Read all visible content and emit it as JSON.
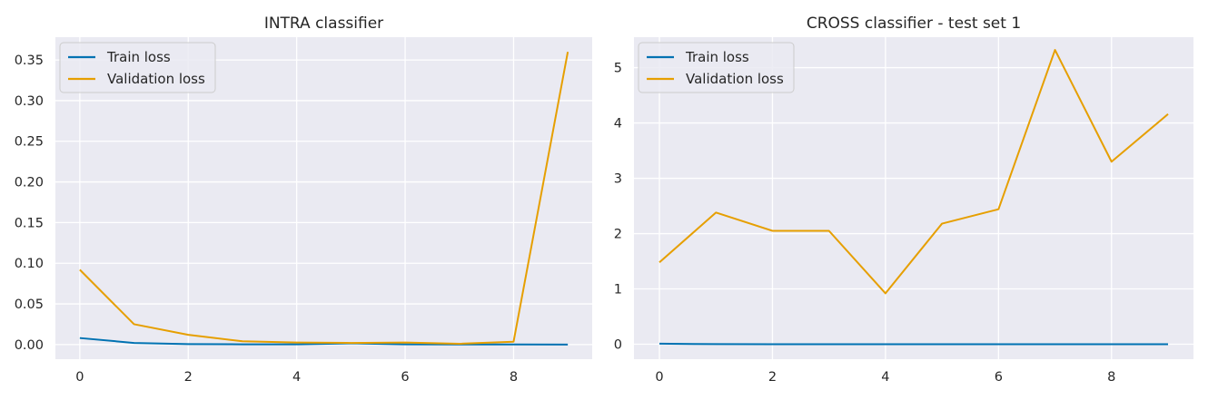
{
  "chart_data": [
    {
      "type": "line",
      "title": "INTRA classifier",
      "xlabel": "",
      "ylabel": "",
      "x": [
        0,
        1,
        2,
        3,
        4,
        5,
        6,
        7,
        8,
        9
      ],
      "xlim": [
        -0.45,
        9.45
      ],
      "ylim": [
        -0.018,
        0.378
      ],
      "xticks": [
        0,
        2,
        4,
        6,
        8
      ],
      "yticks": [
        0.0,
        0.05,
        0.1,
        0.15,
        0.2,
        0.25,
        0.3,
        0.35
      ],
      "ytick_labels": [
        "0.00",
        "0.05",
        "0.10",
        "0.15",
        "0.20",
        "0.25",
        "0.30",
        "0.35"
      ],
      "grid": true,
      "legend_position": "upper-left",
      "series": [
        {
          "name": "Train loss",
          "color": "#0072b2",
          "values": [
            0.008,
            0.002,
            0.0005,
            0.0003,
            0.0002,
            0.0015,
            0.0002,
            0.0001,
            0.0001,
            0.0
          ]
        },
        {
          "name": "Validation loss",
          "color": "#e69f00",
          "values": [
            0.092,
            0.025,
            0.012,
            0.004,
            0.0025,
            0.002,
            0.0025,
            0.001,
            0.0035,
            0.36
          ]
        }
      ]
    },
    {
      "type": "line",
      "title": "CROSS classifier - test set 1",
      "xlabel": "",
      "ylabel": "",
      "x": [
        0,
        1,
        2,
        3,
        4,
        5,
        6,
        7,
        8,
        9
      ],
      "xlim": [
        -0.45,
        9.45
      ],
      "ylim": [
        -0.27,
        5.55
      ],
      "xticks": [
        0,
        2,
        4,
        6,
        8
      ],
      "yticks": [
        0,
        1,
        2,
        3,
        4,
        5
      ],
      "ytick_labels": [
        "0",
        "1",
        "2",
        "3",
        "4",
        "5"
      ],
      "grid": true,
      "legend_position": "upper-left",
      "series": [
        {
          "name": "Train loss",
          "color": "#0072b2",
          "values": [
            0.01,
            0.002,
            0.001,
            0.001,
            0.001,
            0.001,
            0.001,
            0.001,
            0.001,
            0.001
          ]
        },
        {
          "name": "Validation loss",
          "color": "#e69f00",
          "values": [
            1.48,
            2.38,
            2.05,
            2.05,
            0.92,
            2.18,
            2.44,
            5.32,
            3.3,
            4.16
          ]
        }
      ]
    }
  ]
}
